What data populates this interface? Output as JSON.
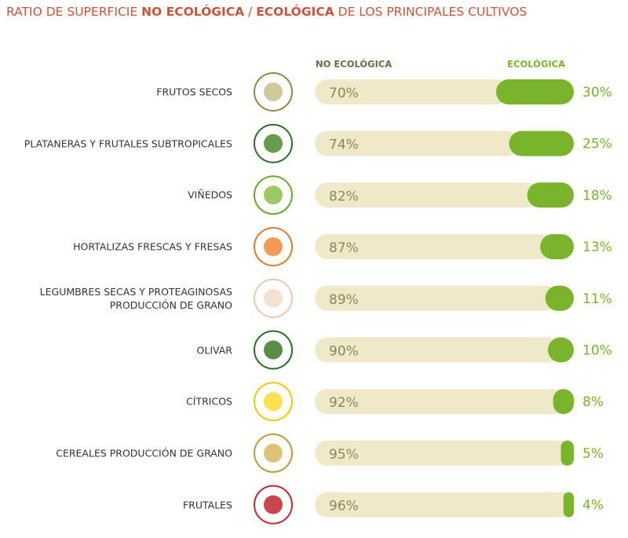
{
  "chart_data": {
    "type": "bar",
    "orientation": "horizontal",
    "stacked": true,
    "title": [
      "RATIO DE SUPERFICIE ",
      "NO ECOLÓGICA",
      " / ",
      "ECOLÓGICA",
      " DE LOS PRINCIPALES CULTIVOS"
    ],
    "categories": [
      "FRUTOS SECOS",
      "PLATANERAS Y FRUTALES SUBTROPICALES",
      "VIÑEDOS",
      "HORTALIZAS FRESCAS Y FRESAS",
      "LEGUMBRES SECAS Y PROTEAGINOSAS\nPRODUCCIÓN DE GRANO",
      "OLIVAR",
      "CÍTRICOS",
      "CEREALES PRODUCCIÓN DE GRANO",
      "FRUTALES"
    ],
    "xlim": [
      0,
      100
    ],
    "series": [
      {
        "name": "NO ECOLÓGICA",
        "color": "#efe9c9",
        "values": [
          70,
          74,
          82,
          87,
          89,
          90,
          92,
          95,
          96
        ],
        "value_labels": [
          "70%",
          "74%",
          "82%",
          "87%",
          "89%",
          "90%",
          "92%",
          "95%",
          "96%"
        ]
      },
      {
        "name": "ECOLÓGICA",
        "color": "#79b42b",
        "values": [
          30,
          25,
          18,
          13,
          11,
          10,
          8,
          5,
          4
        ],
        "value_labels": [
          "30%",
          "25%",
          "18%",
          "13%",
          "11%",
          "10%",
          "8%",
          "5%",
          "4%"
        ]
      }
    ]
  }
}
